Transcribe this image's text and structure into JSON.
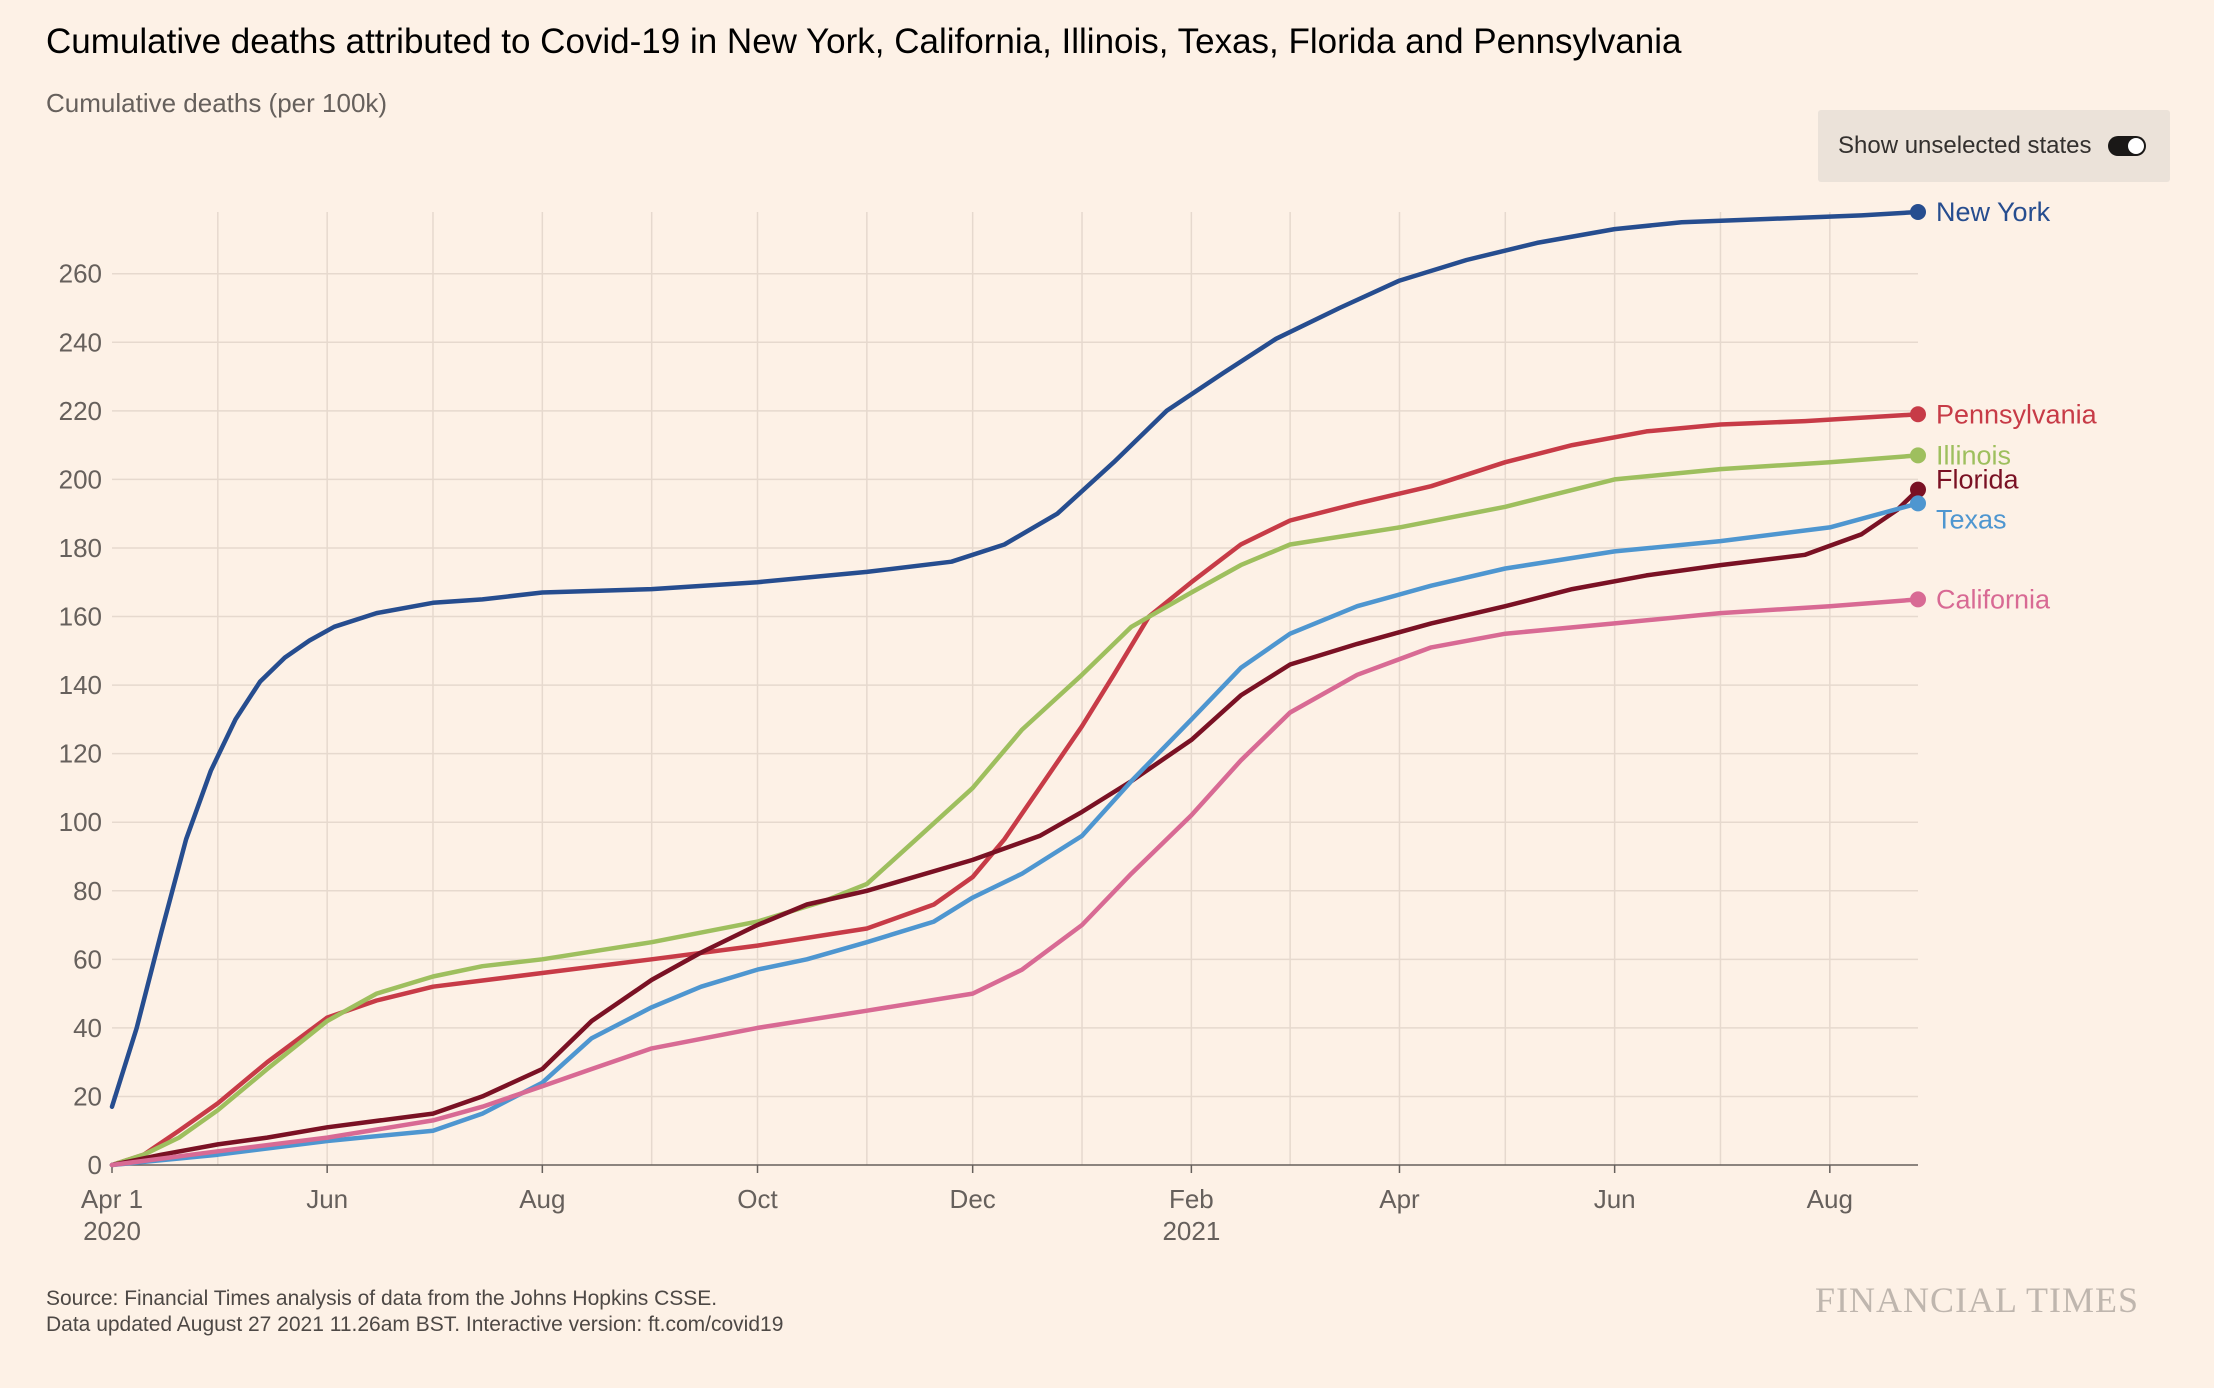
{
  "header": {
    "title": "Cumulative deaths attributed to Covid-19 in New York, California, Illinois, Texas, Florida and Pennsylvania",
    "subtitle": "Cumulative deaths (per 100k)"
  },
  "toggle": {
    "label": "Show unselected states",
    "state": "on"
  },
  "footer": {
    "source": "Source: Financial Times analysis of data from the Johns Hopkins CSSE.",
    "updated": "Data updated August 27 2021 11.26am BST. Interactive version: ft.com/covid19",
    "logo": "FINANCIAL TIMES"
  },
  "chart_data": {
    "type": "line",
    "title": "Cumulative deaths attributed to Covid-19 in New York, California, Illinois, Texas, Florida and Pennsylvania",
    "ylabel": "Cumulative deaths (per 100k)",
    "xlim": [
      "2020-04-01",
      "2021-08-26"
    ],
    "ylim": [
      0,
      278
    ],
    "yticks": [
      0,
      20,
      40,
      60,
      80,
      100,
      120,
      140,
      160,
      180,
      200,
      220,
      240,
      260
    ],
    "xticks": [
      {
        "date": "2020-04-01",
        "label": "Apr 1",
        "year": "2020"
      },
      {
        "date": "2020-06-01",
        "label": "Jun",
        "year": ""
      },
      {
        "date": "2020-08-01",
        "label": "Aug",
        "year": ""
      },
      {
        "date": "2020-10-01",
        "label": "Oct",
        "year": ""
      },
      {
        "date": "2020-12-01",
        "label": "Dec",
        "year": ""
      },
      {
        "date": "2021-02-01",
        "label": "Feb",
        "year": "2021"
      },
      {
        "date": "2021-04-01",
        "label": "Apr",
        "year": ""
      },
      {
        "date": "2021-06-01",
        "label": "Jun",
        "year": ""
      },
      {
        "date": "2021-08-01",
        "label": "Aug",
        "year": ""
      }
    ],
    "grid": true,
    "legend": "labels at line ends",
    "series": [
      {
        "name": "New York",
        "color": "#264d8f",
        "points": [
          [
            "2020-04-01",
            17
          ],
          [
            "2020-04-08",
            40
          ],
          [
            "2020-04-15",
            68
          ],
          [
            "2020-04-22",
            95
          ],
          [
            "2020-04-29",
            115
          ],
          [
            "2020-05-06",
            130
          ],
          [
            "2020-05-13",
            141
          ],
          [
            "2020-05-20",
            148
          ],
          [
            "2020-05-27",
            153
          ],
          [
            "2020-06-03",
            157
          ],
          [
            "2020-06-15",
            161
          ],
          [
            "2020-07-01",
            164
          ],
          [
            "2020-07-15",
            165
          ],
          [
            "2020-08-01",
            167
          ],
          [
            "2020-09-01",
            168
          ],
          [
            "2020-10-01",
            170
          ],
          [
            "2020-11-01",
            173
          ],
          [
            "2020-11-25",
            176
          ],
          [
            "2020-12-10",
            181
          ],
          [
            "2020-12-25",
            190
          ],
          [
            "2021-01-10",
            205
          ],
          [
            "2021-01-25",
            220
          ],
          [
            "2021-02-10",
            231
          ],
          [
            "2021-02-25",
            241
          ],
          [
            "2021-03-15",
            250
          ],
          [
            "2021-04-01",
            258
          ],
          [
            "2021-04-20",
            264
          ],
          [
            "2021-05-10",
            269
          ],
          [
            "2021-06-01",
            273
          ],
          [
            "2021-06-20",
            275
          ],
          [
            "2021-07-15",
            276
          ],
          [
            "2021-08-10",
            277
          ],
          [
            "2021-08-26",
            278
          ]
        ]
      },
      {
        "name": "Pennsylvania",
        "color": "#c73b47",
        "points": [
          [
            "2020-04-01",
            0
          ],
          [
            "2020-04-10",
            3
          ],
          [
            "2020-04-20",
            10
          ],
          [
            "2020-05-01",
            18
          ],
          [
            "2020-05-15",
            30
          ],
          [
            "2020-06-01",
            43
          ],
          [
            "2020-06-15",
            48
          ],
          [
            "2020-07-01",
            52
          ],
          [
            "2020-08-01",
            56
          ],
          [
            "2020-09-01",
            60
          ],
          [
            "2020-10-01",
            64
          ],
          [
            "2020-11-01",
            69
          ],
          [
            "2020-11-20",
            76
          ],
          [
            "2020-12-01",
            84
          ],
          [
            "2020-12-10",
            95
          ],
          [
            "2020-12-20",
            110
          ],
          [
            "2021-01-01",
            128
          ],
          [
            "2021-01-10",
            143
          ],
          [
            "2021-01-20",
            160
          ],
          [
            "2021-02-01",
            170
          ],
          [
            "2021-02-15",
            181
          ],
          [
            "2021-03-01",
            188
          ],
          [
            "2021-03-20",
            193
          ],
          [
            "2021-04-10",
            198
          ],
          [
            "2021-05-01",
            205
          ],
          [
            "2021-05-20",
            210
          ],
          [
            "2021-06-10",
            214
          ],
          [
            "2021-07-01",
            216
          ],
          [
            "2021-07-25",
            217
          ],
          [
            "2021-08-26",
            219
          ]
        ]
      },
      {
        "name": "Illinois",
        "color": "#9ebf5e",
        "points": [
          [
            "2020-04-01",
            0
          ],
          [
            "2020-04-10",
            3
          ],
          [
            "2020-04-20",
            8
          ],
          [
            "2020-05-01",
            16
          ],
          [
            "2020-05-15",
            28
          ],
          [
            "2020-06-01",
            42
          ],
          [
            "2020-06-15",
            50
          ],
          [
            "2020-07-01",
            55
          ],
          [
            "2020-07-15",
            58
          ],
          [
            "2020-08-01",
            60
          ],
          [
            "2020-09-01",
            65
          ],
          [
            "2020-10-01",
            71
          ],
          [
            "2020-10-20",
            77
          ],
          [
            "2020-11-01",
            82
          ],
          [
            "2020-11-15",
            95
          ],
          [
            "2020-12-01",
            110
          ],
          [
            "2020-12-15",
            127
          ],
          [
            "2021-01-01",
            143
          ],
          [
            "2021-01-15",
            157
          ],
          [
            "2021-02-01",
            167
          ],
          [
            "2021-02-15",
            175
          ],
          [
            "2021-03-01",
            181
          ],
          [
            "2021-04-01",
            186
          ],
          [
            "2021-05-01",
            192
          ],
          [
            "2021-06-01",
            200
          ],
          [
            "2021-07-01",
            203
          ],
          [
            "2021-08-01",
            205
          ],
          [
            "2021-08-26",
            207
          ]
        ]
      },
      {
        "name": "Florida",
        "color": "#7a1124",
        "points": [
          [
            "2020-04-01",
            0
          ],
          [
            "2020-04-15",
            3
          ],
          [
            "2020-05-01",
            6
          ],
          [
            "2020-05-15",
            8
          ],
          [
            "2020-06-01",
            11
          ],
          [
            "2020-07-01",
            15
          ],
          [
            "2020-07-15",
            20
          ],
          [
            "2020-08-01",
            28
          ],
          [
            "2020-08-15",
            42
          ],
          [
            "2020-09-01",
            54
          ],
          [
            "2020-09-15",
            62
          ],
          [
            "2020-10-01",
            70
          ],
          [
            "2020-10-15",
            76
          ],
          [
            "2020-11-01",
            80
          ],
          [
            "2020-12-01",
            89
          ],
          [
            "2020-12-20",
            96
          ],
          [
            "2021-01-01",
            103
          ],
          [
            "2021-01-15",
            112
          ],
          [
            "2021-02-01",
            124
          ],
          [
            "2021-02-15",
            137
          ],
          [
            "2021-03-01",
            146
          ],
          [
            "2021-03-20",
            152
          ],
          [
            "2021-04-10",
            158
          ],
          [
            "2021-05-01",
            163
          ],
          [
            "2021-05-20",
            168
          ],
          [
            "2021-06-10",
            172
          ],
          [
            "2021-07-01",
            175
          ],
          [
            "2021-07-25",
            178
          ],
          [
            "2021-08-10",
            184
          ],
          [
            "2021-08-20",
            191
          ],
          [
            "2021-08-26",
            197
          ]
        ]
      },
      {
        "name": "Texas",
        "color": "#4e96d0",
        "points": [
          [
            "2020-04-01",
            0
          ],
          [
            "2020-05-01",
            3
          ],
          [
            "2020-06-01",
            7
          ],
          [
            "2020-07-01",
            10
          ],
          [
            "2020-07-15",
            15
          ],
          [
            "2020-08-01",
            24
          ],
          [
            "2020-08-15",
            37
          ],
          [
            "2020-09-01",
            46
          ],
          [
            "2020-09-15",
            52
          ],
          [
            "2020-10-01",
            57
          ],
          [
            "2020-10-15",
            60
          ],
          [
            "2020-11-01",
            65
          ],
          [
            "2020-11-20",
            71
          ],
          [
            "2020-12-01",
            78
          ],
          [
            "2020-12-15",
            85
          ],
          [
            "2021-01-01",
            96
          ],
          [
            "2021-01-15",
            112
          ],
          [
            "2021-02-01",
            130
          ],
          [
            "2021-02-15",
            145
          ],
          [
            "2021-03-01",
            155
          ],
          [
            "2021-03-20",
            163
          ],
          [
            "2021-04-10",
            169
          ],
          [
            "2021-05-01",
            174
          ],
          [
            "2021-06-01",
            179
          ],
          [
            "2021-07-01",
            182
          ],
          [
            "2021-08-01",
            186
          ],
          [
            "2021-08-26",
            193
          ]
        ]
      },
      {
        "name": "California",
        "color": "#d86a94",
        "points": [
          [
            "2020-04-01",
            0
          ],
          [
            "2020-05-01",
            4
          ],
          [
            "2020-06-01",
            8
          ],
          [
            "2020-07-01",
            13
          ],
          [
            "2020-07-15",
            17
          ],
          [
            "2020-08-01",
            23
          ],
          [
            "2020-08-15",
            28
          ],
          [
            "2020-09-01",
            34
          ],
          [
            "2020-10-01",
            40
          ],
          [
            "2020-11-01",
            45
          ],
          [
            "2020-12-01",
            50
          ],
          [
            "2020-12-15",
            57
          ],
          [
            "2021-01-01",
            70
          ],
          [
            "2021-01-15",
            85
          ],
          [
            "2021-02-01",
            102
          ],
          [
            "2021-02-15",
            118
          ],
          [
            "2021-03-01",
            132
          ],
          [
            "2021-03-20",
            143
          ],
          [
            "2021-04-10",
            151
          ],
          [
            "2021-05-01",
            155
          ],
          [
            "2021-06-01",
            158
          ],
          [
            "2021-07-01",
            161
          ],
          [
            "2021-08-01",
            163
          ],
          [
            "2021-08-26",
            165
          ]
        ]
      }
    ]
  }
}
